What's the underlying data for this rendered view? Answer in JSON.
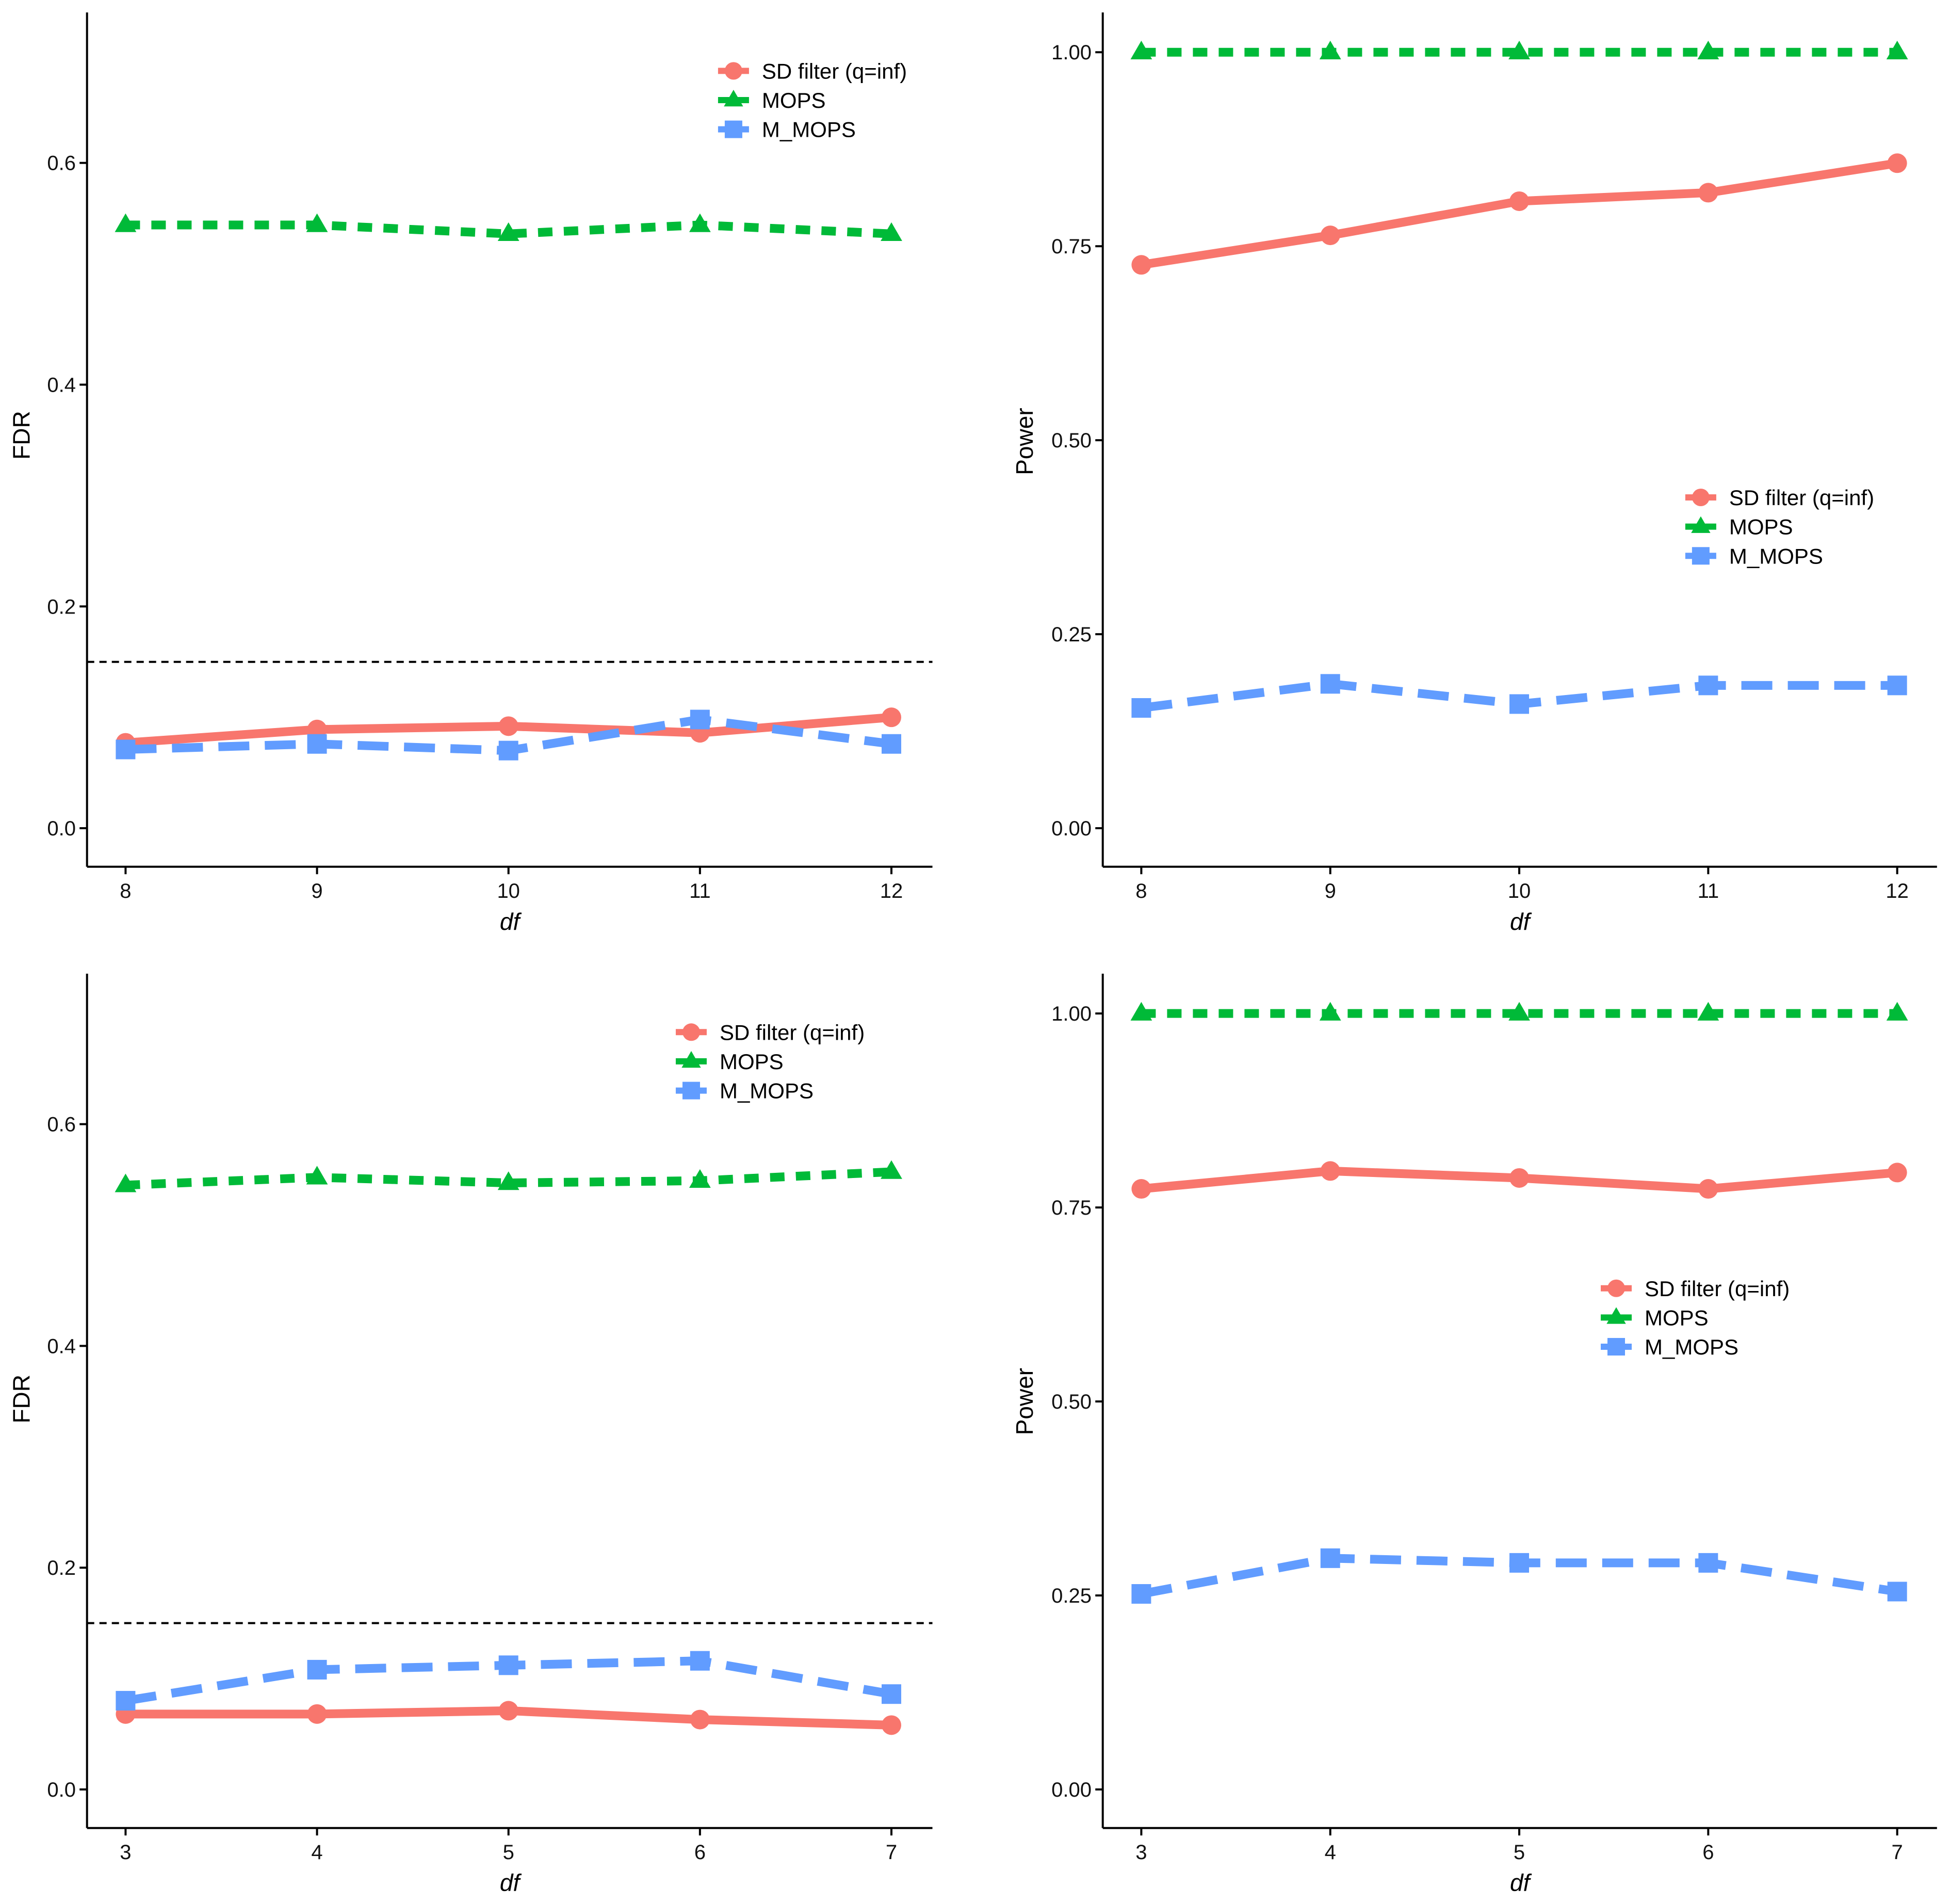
{
  "colors": {
    "sd_filter": "#F8766D",
    "mops": "#00BA38",
    "m_mops": "#619CFF",
    "threshold": "#000000"
  },
  "legend": {
    "entries": [
      {
        "label": "SD filter (q=inf)",
        "series": "sd_filter",
        "shape": "circle"
      },
      {
        "label": "MOPS",
        "series": "mops",
        "shape": "triangle"
      },
      {
        "label": "M_MOPS",
        "series": "m_mops",
        "shape": "square"
      }
    ]
  },
  "chart_data": [
    {
      "id": "top-left",
      "type": "line",
      "title": "",
      "xlabel": "df",
      "ylabel": "FDR",
      "x": [
        8,
        9,
        10,
        11,
        12
      ],
      "xticks": [
        "8",
        "9",
        "10",
        "11",
        "12"
      ],
      "ylim": [
        -0.035,
        0.74
      ],
      "yticks": [
        0.0,
        0.2,
        0.4,
        0.6
      ],
      "ytick_labels": [
        "0.0",
        "0.2",
        "0.4",
        "0.6"
      ],
      "reference_line": 0.15,
      "legend_position": "top-right",
      "grid": false,
      "series": [
        {
          "name": "SD filter (q=inf)",
          "key": "sd_filter",
          "linetype": "solid",
          "values": [
            0.077,
            0.089,
            0.092,
            0.086,
            0.1
          ]
        },
        {
          "name": "MOPS",
          "key": "mops",
          "linetype": "dotted",
          "values": [
            0.544,
            0.544,
            0.536,
            0.544,
            0.536
          ]
        },
        {
          "name": "M_MOPS",
          "key": "m_mops",
          "linetype": "dashed",
          "values": [
            0.071,
            0.076,
            0.07,
            0.098,
            0.076
          ]
        }
      ]
    },
    {
      "id": "top-right",
      "type": "line",
      "title": "",
      "xlabel": "df",
      "ylabel": "Power",
      "x": [
        8,
        9,
        10,
        11,
        12
      ],
      "xticks": [
        "8",
        "9",
        "10",
        "11",
        "12"
      ],
      "ylim": [
        -0.05,
        1.05
      ],
      "yticks": [
        0.0,
        0.25,
        0.5,
        0.75,
        1.0
      ],
      "ytick_labels": [
        "0.00",
        "0.25",
        "0.50",
        "0.75",
        "1.00"
      ],
      "reference_line": null,
      "legend_position": "center-right",
      "grid": false,
      "series": [
        {
          "name": "SD filter (q=inf)",
          "key": "sd_filter",
          "linetype": "solid",
          "values": [
            0.726,
            0.764,
            0.808,
            0.819,
            0.857
          ]
        },
        {
          "name": "MOPS",
          "key": "mops",
          "linetype": "dotted",
          "values": [
            1.0,
            1.0,
            1.0,
            1.0,
            1.0
          ]
        },
        {
          "name": "M_MOPS",
          "key": "m_mops",
          "linetype": "dashed",
          "values": [
            0.155,
            0.186,
            0.16,
            0.184,
            0.184
          ]
        }
      ]
    },
    {
      "id": "bottom-left",
      "type": "line",
      "title": "",
      "xlabel": "df",
      "ylabel": "FDR",
      "x": [
        3,
        4,
        5,
        6,
        7
      ],
      "xticks": [
        "3",
        "4",
        "5",
        "6",
        "7"
      ],
      "ylim": [
        -0.035,
        0.74
      ],
      "yticks": [
        0.0,
        0.2,
        0.4,
        0.6
      ],
      "ytick_labels": [
        "0.0",
        "0.2",
        "0.4",
        "0.6"
      ],
      "reference_line": 0.15,
      "legend_position": "top-right",
      "grid": false,
      "series": [
        {
          "name": "SD filter (q=inf)",
          "key": "sd_filter",
          "linetype": "solid",
          "values": [
            0.068,
            0.068,
            0.071,
            0.063,
            0.058
          ]
        },
        {
          "name": "MOPS",
          "key": "mops",
          "linetype": "dotted",
          "values": [
            0.545,
            0.552,
            0.547,
            0.549,
            0.557
          ]
        },
        {
          "name": "M_MOPS",
          "key": "m_mops",
          "linetype": "dashed",
          "values": [
            0.08,
            0.108,
            0.112,
            0.116,
            0.086
          ]
        }
      ]
    },
    {
      "id": "bottom-right",
      "type": "line",
      "title": "",
      "xlabel": "df",
      "ylabel": "Power",
      "x": [
        3,
        4,
        5,
        6,
        7
      ],
      "xticks": [
        "3",
        "4",
        "5",
        "6",
        "7"
      ],
      "ylim": [
        -0.05,
        1.05
      ],
      "yticks": [
        0.0,
        0.25,
        0.5,
        0.75,
        1.0
      ],
      "ytick_labels": [
        "0.00",
        "0.25",
        "0.50",
        "0.75",
        "1.00"
      ],
      "reference_line": null,
      "legend_position": "center-right",
      "grid": false,
      "series": [
        {
          "name": "SD filter (q=inf)",
          "key": "sd_filter",
          "linetype": "solid",
          "values": [
            0.774,
            0.797,
            0.788,
            0.774,
            0.795
          ]
        },
        {
          "name": "MOPS",
          "key": "mops",
          "linetype": "dotted",
          "values": [
            1.0,
            1.0,
            1.0,
            1.0,
            1.0
          ]
        },
        {
          "name": "M_MOPS",
          "key": "m_mops",
          "linetype": "dashed",
          "values": [
            0.252,
            0.298,
            0.292,
            0.292,
            0.255
          ]
        }
      ]
    }
  ]
}
